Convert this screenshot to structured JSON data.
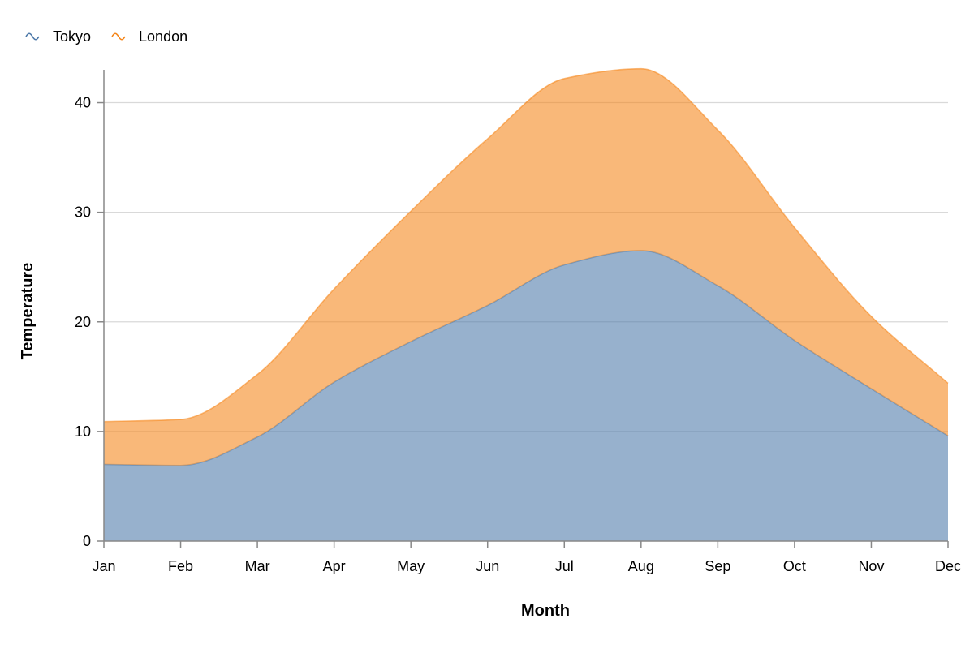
{
  "chart_data": {
    "type": "area",
    "stacked": true,
    "title": "",
    "xlabel": "Month",
    "ylabel": "Temperature",
    "categories": [
      "Jan",
      "Feb",
      "Mar",
      "Apr",
      "May",
      "Jun",
      "Jul",
      "Aug",
      "Sep",
      "Oct",
      "Nov",
      "Dec"
    ],
    "series": [
      {
        "name": "Tokyo",
        "color": "#4c78a8",
        "values": [
          7.0,
          6.9,
          9.5,
          14.5,
          18.2,
          21.5,
          25.2,
          26.5,
          23.3,
          18.3,
          13.9,
          9.6
        ]
      },
      {
        "name": "London",
        "color": "#f58518",
        "values": [
          3.9,
          4.2,
          5.7,
          8.5,
          11.9,
          15.2,
          17.0,
          16.6,
          14.2,
          10.3,
          6.6,
          4.8
        ]
      }
    ],
    "yticks": [
      0,
      10,
      20,
      30,
      40
    ],
    "ylim": [
      0,
      43
    ],
    "grid": true,
    "legend_position": "top-left"
  }
}
